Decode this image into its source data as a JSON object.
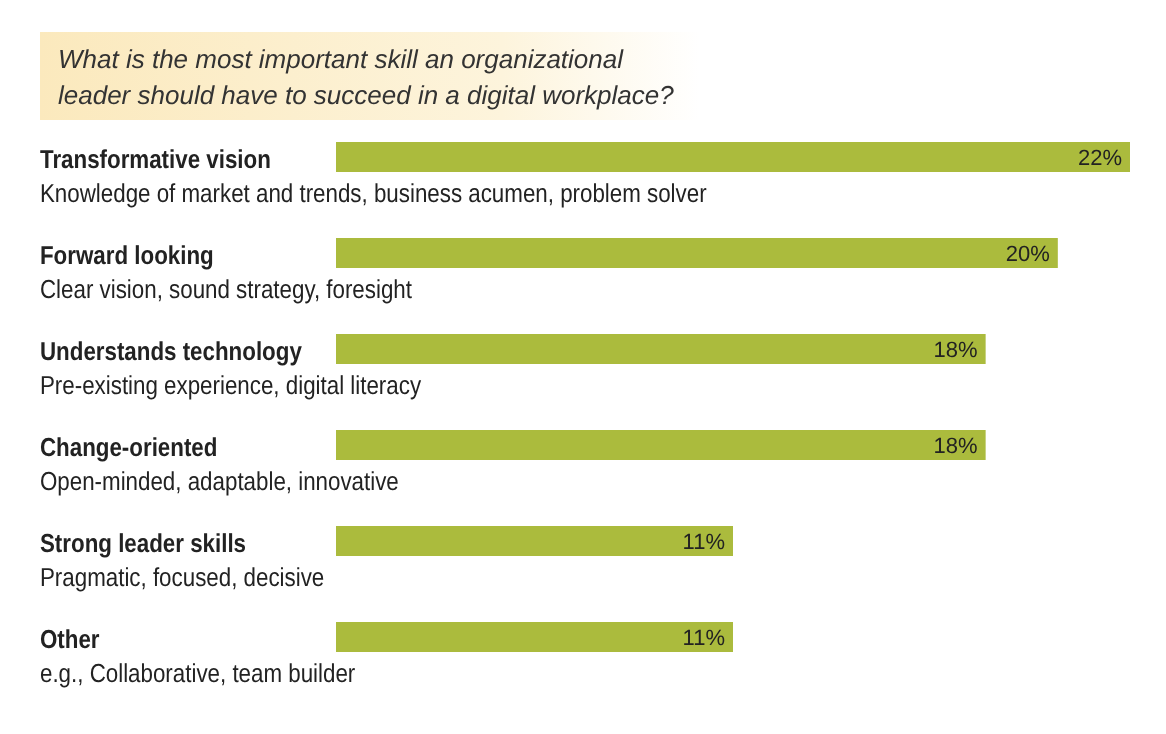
{
  "chart_data": {
    "type": "bar",
    "orientation": "horizontal",
    "title": "What is the most important skill an organizational\nleader should have to succeed in a digital workplace?",
    "categories": [
      "Transformative vision\nKnowledge of market and trends, business acumen, problem solver",
      "Forward looking\nClear vision, sound strategy, foresight",
      "Understands technology\nPre-existing experience, digital literacy",
      "Change-oriented\nOpen-minded, adaptable, innovative",
      "Strong leader skills\nPragmatic, focused, decisive",
      "Other\ne.g., Collaborative, team builder"
    ],
    "values": [
      22,
      20,
      18,
      18,
      11,
      11
    ],
    "value_labels": [
      "22%",
      "20%",
      "18%",
      "18%",
      "11%",
      "11%"
    ],
    "color": "#abbb3d",
    "xlim": [
      0,
      22
    ]
  }
}
